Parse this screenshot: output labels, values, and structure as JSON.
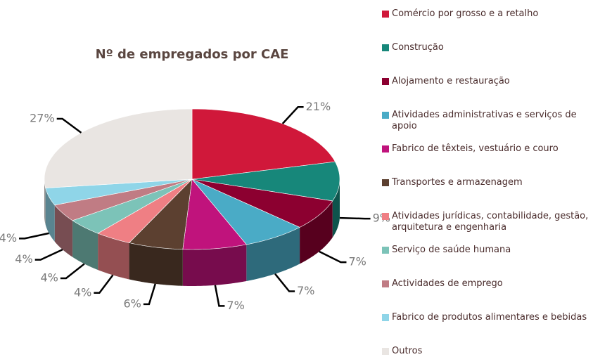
{
  "chart_data": {
    "type": "pie",
    "title": "Nº de empregados por CAE",
    "categories": [
      "Comércio por grosso e a retalho",
      "Construção",
      "Alojamento e restauração",
      "Atividades administrativas e serviços de apoio",
      "Fabrico de têxteis, vestuário e couro",
      "Transportes e armazenagem",
      "Atividades jurídicas, contabilidade, gestão, arquitetura e engenharia",
      "Serviço de saúde humana",
      "Actividades de emprego",
      "Fabrico de produtos alimentares e bebidas",
      "Outros"
    ],
    "values": [
      21,
      9,
      7,
      7,
      7,
      6,
      4,
      4,
      4,
      4,
      27
    ],
    "value_labels": [
      "21%",
      "9%",
      "7%",
      "7%",
      "7%",
      "6%",
      "4%",
      "4%",
      "4%",
      "4%",
      "27%"
    ],
    "colors": [
      "#d0183a",
      "#17877a",
      "#8c0030",
      "#4aabc6",
      "#c0137c",
      "#5c4030",
      "#ef7f84",
      "#7cc3b8",
      "#c07c84",
      "#8fd5e8",
      "#e9e5e2"
    ]
  }
}
